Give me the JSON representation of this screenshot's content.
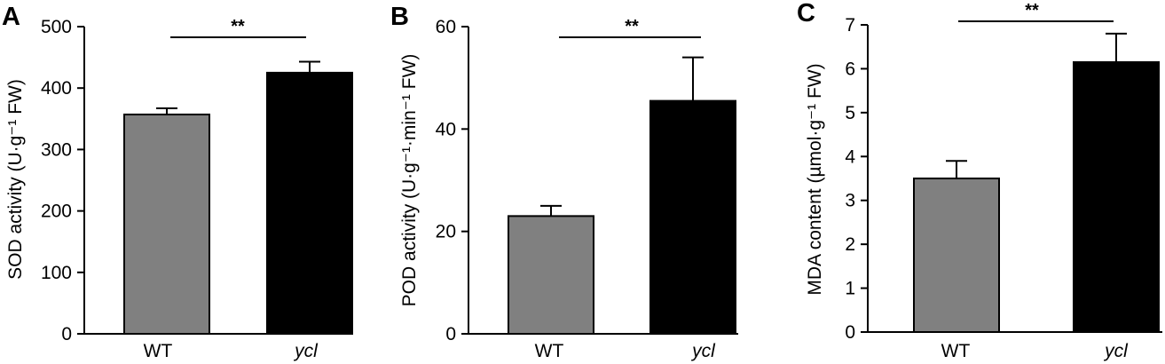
{
  "colors": {
    "wt_bar": "#808080",
    "ycl_bar": "#000000"
  },
  "chart_data": [
    {
      "type": "bar",
      "panel": "A",
      "categories": [
        "WT",
        "ycl"
      ],
      "values": [
        357,
        425
      ],
      "errors": [
        10,
        18
      ],
      "ylabel": "SOD activity (U·g⁻¹ FW)",
      "ylim": [
        0,
        500
      ],
      "yticks": [
        "0",
        "100",
        "200",
        "300",
        "400",
        "500"
      ],
      "significance": "**"
    },
    {
      "type": "bar",
      "panel": "B",
      "categories": [
        "WT",
        "ycl"
      ],
      "values": [
        23,
        45.5
      ],
      "errors": [
        2,
        8.5
      ],
      "ylabel": "POD activity (U·g⁻¹·min⁻¹ FW)",
      "ylim": [
        0,
        60
      ],
      "yticks": [
        "0",
        "20",
        "40",
        "60"
      ],
      "significance": "**"
    },
    {
      "type": "bar",
      "panel": "C",
      "categories": [
        "WT",
        "ycl"
      ],
      "values": [
        3.5,
        6.15
      ],
      "errors": [
        0.4,
        0.65
      ],
      "ylabel": "MDA content (µmol·g⁻¹ FW)",
      "ylim": [
        0,
        7
      ],
      "yticks": [
        "0",
        "1",
        "2",
        "3",
        "4",
        "5",
        "6",
        "7"
      ],
      "significance": "**"
    }
  ]
}
